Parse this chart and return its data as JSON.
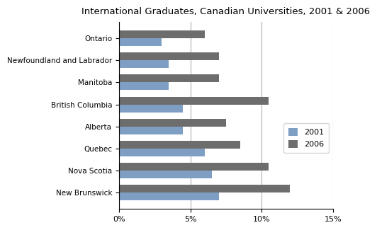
{
  "title": "International Graduates, Canadian Universities, 2001 & 2006",
  "provinces": [
    "New Brunswick",
    "Nova Scotia",
    "Quebec",
    "Alberta",
    "British Columbia",
    "Manitoba",
    "Newfoundland and Labrador",
    "Ontario"
  ],
  "values_2001": [
    7.0,
    6.5,
    6.0,
    4.5,
    4.5,
    3.5,
    3.5,
    3.0
  ],
  "values_2006": [
    12.0,
    10.5,
    8.5,
    7.5,
    10.5,
    7.0,
    7.0,
    6.0
  ],
  "color_2001": "#7f9ec4",
  "color_2006": "#6d6d6d",
  "xlim": [
    0,
    15
  ],
  "xticks": [
    0,
    5,
    10,
    15
  ],
  "xticklabels": [
    "0%",
    "5%",
    "10%",
    "15%"
  ],
  "legend_labels": [
    "2001",
    "2006"
  ],
  "bar_height": 0.35,
  "background_color": "#ffffff",
  "grid_color": "#b0b0b0"
}
